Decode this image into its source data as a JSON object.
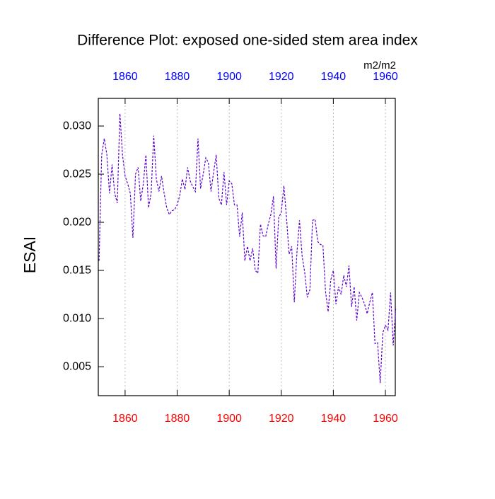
{
  "chart_data": {
    "type": "line",
    "title": "Difference Plot: exposed one-sided stem area index",
    "units": "m2/m2",
    "ylabel": "ESAI",
    "x": [
      1850,
      1851,
      1852,
      1853,
      1854,
      1855,
      1856,
      1857,
      1858,
      1859,
      1860,
      1861,
      1862,
      1863,
      1864,
      1865,
      1866,
      1867,
      1868,
      1869,
      1870,
      1871,
      1872,
      1873,
      1874,
      1875,
      1876,
      1877,
      1878,
      1879,
      1880,
      1881,
      1882,
      1883,
      1884,
      1885,
      1886,
      1887,
      1888,
      1889,
      1890,
      1891,
      1892,
      1893,
      1894,
      1895,
      1896,
      1897,
      1898,
      1899,
      1900,
      1901,
      1902,
      1903,
      1904,
      1905,
      1906,
      1907,
      1908,
      1909,
      1910,
      1911,
      1912,
      1913,
      1914,
      1915,
      1916,
      1917,
      1918,
      1919,
      1920,
      1921,
      1922,
      1923,
      1924,
      1925,
      1926,
      1927,
      1928,
      1929,
      1930,
      1931,
      1932,
      1933,
      1934,
      1935,
      1936,
      1937,
      1938,
      1939,
      1940,
      1941,
      1942,
      1943,
      1944,
      1945,
      1946,
      1947,
      1948,
      1949,
      1950,
      1951,
      1952,
      1953,
      1954,
      1955,
      1956,
      1957,
      1958,
      1959,
      1960,
      1961,
      1962,
      1963,
      1964
    ],
    "values": [
      0.016,
      0.027,
      0.0287,
      0.027,
      0.023,
      0.026,
      0.023,
      0.022,
      0.0313,
      0.027,
      0.0248,
      0.024,
      0.023,
      0.0184,
      0.025,
      0.0257,
      0.0222,
      0.024,
      0.027,
      0.0215,
      0.023,
      0.029,
      0.0245,
      0.0232,
      0.0248,
      0.023,
      0.0215,
      0.0208,
      0.0212,
      0.0213,
      0.0218,
      0.0228,
      0.0245,
      0.0234,
      0.0257,
      0.0243,
      0.0237,
      0.0232,
      0.0287,
      0.0235,
      0.025,
      0.0267,
      0.0262,
      0.0232,
      0.0252,
      0.027,
      0.0225,
      0.0218,
      0.0252,
      0.0218,
      0.0243,
      0.024,
      0.0218,
      0.0218,
      0.0185,
      0.021,
      0.016,
      0.0175,
      0.016,
      0.0173,
      0.015,
      0.0147,
      0.0198,
      0.0186,
      0.0185,
      0.0198,
      0.0208,
      0.0227,
      0.0152,
      0.0205,
      0.021,
      0.0238,
      0.0205,
      0.0167,
      0.0175,
      0.0117,
      0.0168,
      0.0202,
      0.0165,
      0.0148,
      0.0122,
      0.013,
      0.0202,
      0.0203,
      0.018,
      0.0177,
      0.0176,
      0.0128,
      0.0107,
      0.014,
      0.015,
      0.0115,
      0.0133,
      0.0125,
      0.0145,
      0.0133,
      0.0155,
      0.0112,
      0.0133,
      0.0098,
      0.0127,
      0.0122,
      0.0115,
      0.0105,
      0.0117,
      0.0127,
      0.0074,
      0.0075,
      0.0033,
      0.0085,
      0.0093,
      0.0088,
      0.0127,
      0.0072,
      0.0112
    ],
    "color": "#5a00d0",
    "xlim": [
      1849.7,
      1963.8
    ],
    "xticks": [
      1860,
      1880,
      1900,
      1920,
      1940,
      1960
    ],
    "xtick_color": "#ff0000",
    "x2lim": [
      1849.7,
      1963.8
    ],
    "x2ticks": [
      1860,
      1880,
      1900,
      1920,
      1940,
      1960
    ],
    "x2tick_color": "#0000ff",
    "ylim": [
      0.00199,
      0.03287
    ],
    "yticks": [
      {
        "value": 0.005,
        "label": "0.005"
      },
      {
        "value": 0.01,
        "label": "0.010"
      },
      0.015,
      {
        "value": 0.02,
        "label": "0.020"
      },
      0.025,
      {
        "value": 0.03,
        "label": "0.030"
      }
    ],
    "grid": true
  }
}
